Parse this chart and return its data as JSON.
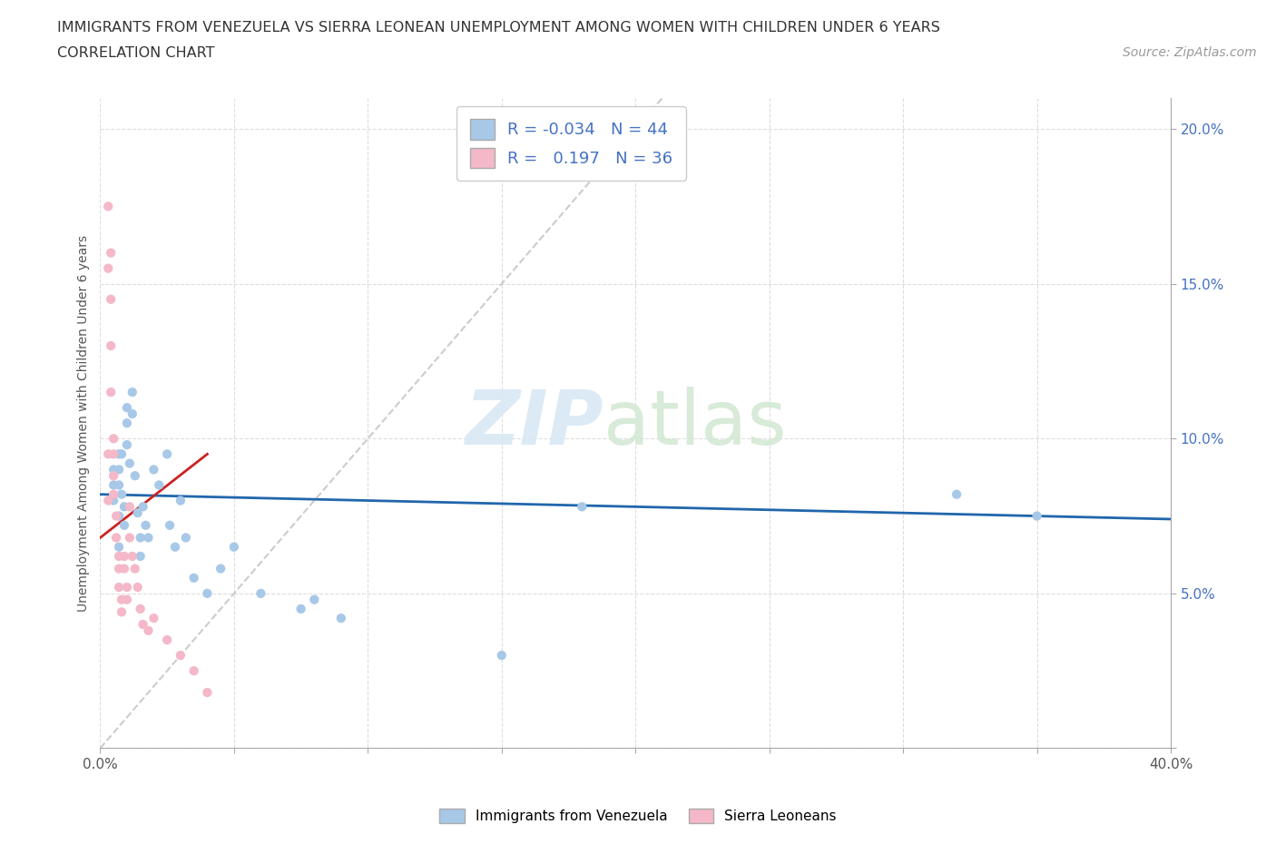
{
  "title_line1": "IMMIGRANTS FROM VENEZUELA VS SIERRA LEONEAN UNEMPLOYMENT AMONG WOMEN WITH CHILDREN UNDER 6 YEARS",
  "title_line2": "CORRELATION CHART",
  "source_text": "Source: ZipAtlas.com",
  "ylabel": "Unemployment Among Women with Children Under 6 years",
  "xlim": [
    0.0,
    0.4
  ],
  "ylim": [
    0.0,
    0.21
  ],
  "xticks": [
    0.0,
    0.05,
    0.1,
    0.15,
    0.2,
    0.25,
    0.3,
    0.35,
    0.4
  ],
  "yticks": [
    0.0,
    0.05,
    0.1,
    0.15,
    0.2
  ],
  "color_venezuela": "#a8c8e8",
  "color_sierra": "#f4b8c8",
  "trendline_venezuela_color": "#2166ac",
  "trendline_sierra_color": "#cc2222",
  "diagonal_color": "#cccccc",
  "R_venezuela": -0.034,
  "N_venezuela": 44,
  "R_sierra": 0.197,
  "N_sierra": 36,
  "legend_label_venezuela": "Immigrants from Venezuela",
  "legend_label_sierra": "Sierra Leoneans",
  "watermark_left": "ZIP",
  "watermark_right": "atlas",
  "venezuela_x": [
    0.005,
    0.005,
    0.005,
    0.007,
    0.007,
    0.007,
    0.007,
    0.007,
    0.008,
    0.008,
    0.009,
    0.009,
    0.01,
    0.01,
    0.01,
    0.011,
    0.012,
    0.012,
    0.013,
    0.014,
    0.015,
    0.015,
    0.016,
    0.017,
    0.018,
    0.02,
    0.022,
    0.025,
    0.026,
    0.028,
    0.03,
    0.032,
    0.035,
    0.04,
    0.045,
    0.05,
    0.06,
    0.075,
    0.08,
    0.09,
    0.15,
    0.18,
    0.32,
    0.35
  ],
  "venezuela_y": [
    0.09,
    0.085,
    0.08,
    0.095,
    0.09,
    0.085,
    0.075,
    0.065,
    0.095,
    0.082,
    0.078,
    0.072,
    0.11,
    0.105,
    0.098,
    0.092,
    0.115,
    0.108,
    0.088,
    0.076,
    0.068,
    0.062,
    0.078,
    0.072,
    0.068,
    0.09,
    0.085,
    0.095,
    0.072,
    0.065,
    0.08,
    0.068,
    0.055,
    0.05,
    0.058,
    0.065,
    0.05,
    0.045,
    0.048,
    0.042,
    0.03,
    0.078,
    0.082,
    0.075
  ],
  "sierra_x": [
    0.003,
    0.003,
    0.003,
    0.003,
    0.004,
    0.004,
    0.004,
    0.004,
    0.005,
    0.005,
    0.005,
    0.005,
    0.006,
    0.006,
    0.007,
    0.007,
    0.007,
    0.008,
    0.008,
    0.009,
    0.009,
    0.01,
    0.01,
    0.011,
    0.011,
    0.012,
    0.013,
    0.014,
    0.015,
    0.016,
    0.018,
    0.02,
    0.025,
    0.03,
    0.035,
    0.04
  ],
  "sierra_y": [
    0.175,
    0.155,
    0.095,
    0.08,
    0.16,
    0.145,
    0.13,
    0.115,
    0.1,
    0.095,
    0.088,
    0.082,
    0.075,
    0.068,
    0.062,
    0.058,
    0.052,
    0.048,
    0.044,
    0.062,
    0.058,
    0.052,
    0.048,
    0.078,
    0.068,
    0.062,
    0.058,
    0.052,
    0.045,
    0.04,
    0.038,
    0.042,
    0.035,
    0.03,
    0.025,
    0.018
  ],
  "trendline_v_x0": 0.0,
  "trendline_v_x1": 0.4,
  "trendline_v_y0": 0.082,
  "trendline_v_y1": 0.074,
  "trendline_s_x0": 0.0,
  "trendline_s_x1": 0.04,
  "trendline_s_y0": 0.068,
  "trendline_s_y1": 0.095
}
